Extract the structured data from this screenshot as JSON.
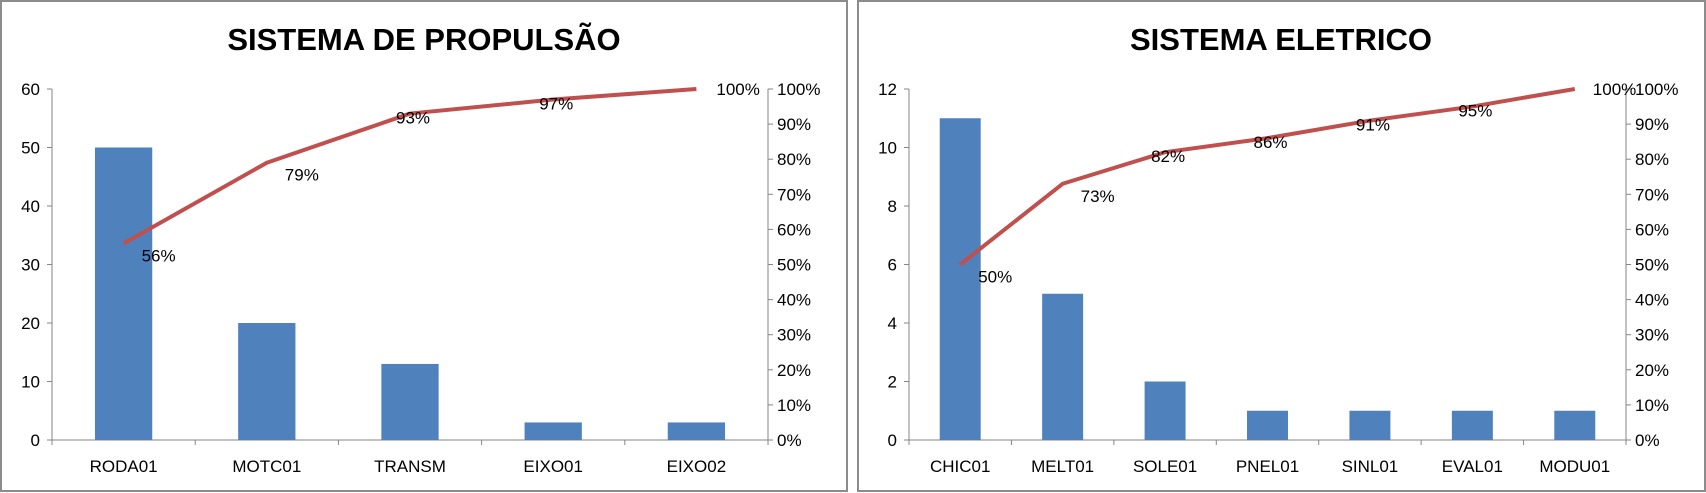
{
  "chart_data": [
    {
      "type": "bar",
      "title": "SISTEMA DE PROPULSÃO",
      "categories": [
        "RODA01",
        "MOTC01",
        "TRANSM",
        "EIXO01",
        "EIXO02"
      ],
      "values": [
        50,
        20,
        13,
        3,
        3
      ],
      "ylim": [
        0,
        60
      ],
      "yticks": [
        "0",
        "10",
        "20",
        "30",
        "40",
        "50",
        "60"
      ],
      "y2lim": [
        0,
        100
      ],
      "y2ticks": [
        "0%",
        "10%",
        "20%",
        "30%",
        "40%",
        "50%",
        "60%",
        "70%",
        "80%",
        "90%",
        "100%"
      ],
      "cumulative_percent": [
        56,
        79,
        93,
        97,
        100
      ],
      "cumulative_labels": [
        "56%",
        "79%",
        "93%",
        "97%",
        "100%"
      ],
      "grid": false,
      "bar_color": "#4f81bd",
      "line_color": "#c0504d"
    },
    {
      "type": "bar",
      "title": "SISTEMA ELETRICO",
      "categories": [
        "CHIC01",
        "MELT01",
        "SOLE01",
        "PNEL01",
        "SINL01",
        "EVAL01",
        "MODU01"
      ],
      "values": [
        11,
        5,
        2,
        1,
        1,
        1,
        1
      ],
      "ylim": [
        0,
        12
      ],
      "yticks": [
        "0",
        "2",
        "4",
        "6",
        "8",
        "10",
        "12"
      ],
      "y2lim": [
        0,
        100
      ],
      "y2ticks": [
        "0%",
        "10%",
        "20%",
        "30%",
        "40%",
        "50%",
        "60%",
        "70%",
        "80%",
        "90%",
        "100%"
      ],
      "cumulative_percent": [
        50,
        73,
        82,
        86,
        91,
        95,
        100
      ],
      "cumulative_labels": [
        "50%",
        "73%",
        "82%",
        "86%",
        "91%",
        "95%",
        "100%"
      ],
      "grid": false,
      "bar_color": "#4f81bd",
      "line_color": "#c0504d"
    }
  ]
}
